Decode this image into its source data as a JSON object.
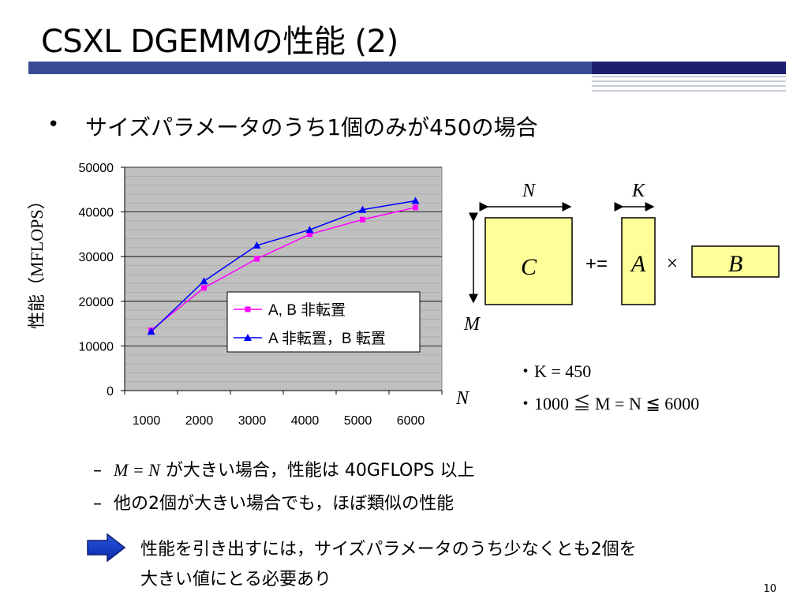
{
  "slide": {
    "title": "CSXL DGEMMの性能 (2)",
    "bullet": "サイズパラメータのうち1個のみが450の場合",
    "sub_bullets": [
      {
        "dash": "–",
        "lhs": "M = N",
        "rest": " が大きい場合，性能は 40GFLOPS 以上"
      },
      {
        "dash": "–",
        "text": "他の2個が大きい場合でも，ほぼ類似の性能"
      }
    ],
    "conclusion": [
      "性能を引き出すには，サイズパラメータのうち少なくとも2個を",
      "大きい値にとる必要あり"
    ],
    "page_number": "10"
  },
  "chart_data": {
    "type": "line",
    "ylabel": "性能（MFLOPS）",
    "xlabel": "",
    "xlabel_side": "N",
    "categories": [
      "1000",
      "2000",
      "3000",
      "4000",
      "5000",
      "6000"
    ],
    "ylim": [
      0,
      50000
    ],
    "yticks": [
      0,
      10000,
      20000,
      30000,
      40000,
      50000
    ],
    "grid": true,
    "legend_position": "center-right",
    "series": [
      {
        "name": "A, B 非転置",
        "color": "#ff00ff",
        "marker": "square",
        "x": [
          1000,
          2000,
          3000,
          4000,
          5000,
          6000
        ],
        "values": [
          13500,
          23000,
          29500,
          35000,
          38300,
          41000
        ]
      },
      {
        "name": "A 非転置，B 転置",
        "color": "#0000ff",
        "marker": "triangle",
        "x": [
          1000,
          2000,
          3000,
          4000,
          5000,
          6000
        ],
        "values": [
          13200,
          24500,
          32500,
          36000,
          40500,
          42500
        ]
      }
    ]
  },
  "diagram": {
    "n_label": "N",
    "k_label": "K",
    "m_label": "M",
    "c_label": "C",
    "a_label": "A",
    "b_label": "B",
    "plus_eq": "+=",
    "times": "×",
    "cond1": "・K = 450",
    "cond2": "・1000 ≦ M = N ≦ 6000",
    "fill_color": "#ffff99"
  }
}
